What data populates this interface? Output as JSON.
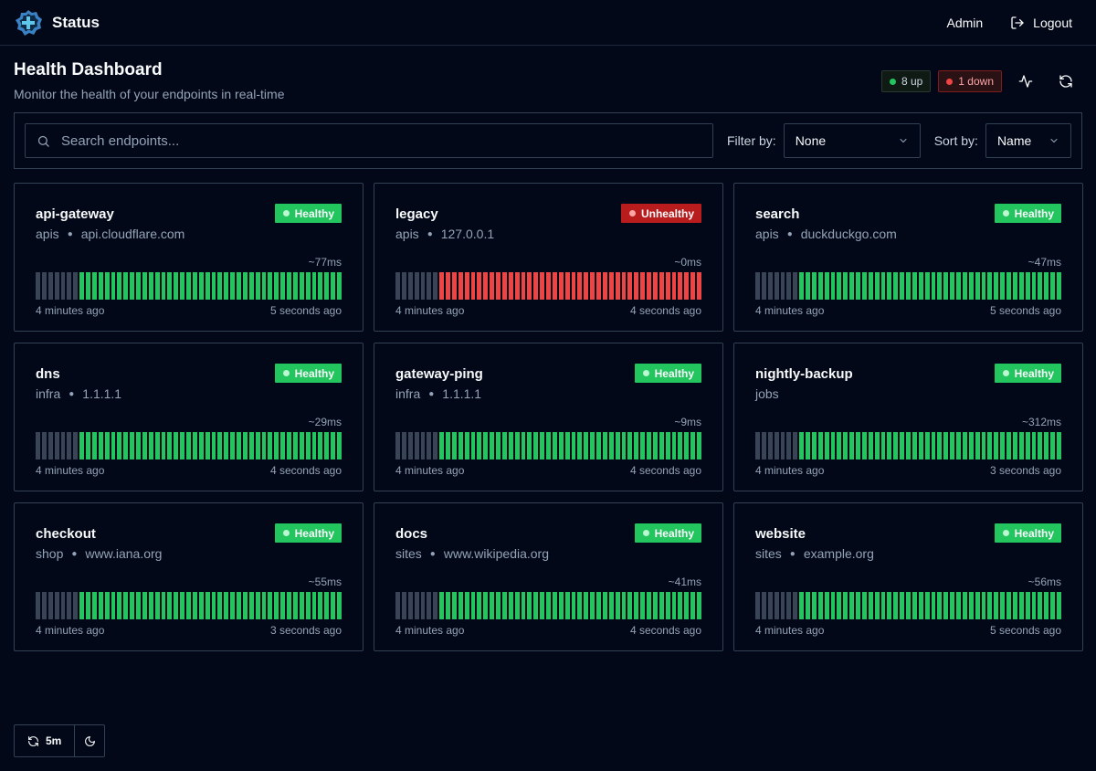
{
  "app": {
    "name": "Status"
  },
  "nav": {
    "admin_label": "Admin",
    "logout_label": "Logout"
  },
  "header": {
    "title": "Health Dashboard",
    "subtitle": "Monitor the health of your endpoints in real-time",
    "up_label": "8 up",
    "down_label": "1 down"
  },
  "toolbar": {
    "search_placeholder": "Search endpoints...",
    "filter_label": "Filter by:",
    "filter_value": "None",
    "sort_label": "Sort by:",
    "sort_value": "Name"
  },
  "colors": {
    "healthy": "#22c55e",
    "unhealthy": "#ef4444",
    "no_data": "#3a4457",
    "background": "#020817"
  },
  "endpoints": [
    {
      "name": "api-gateway",
      "group": "apis",
      "host": "api.cloudflare.com",
      "status": "Healthy",
      "latency": "~77ms",
      "oldest": "4 minutes ago",
      "newest": "5 seconds ago",
      "history_empty": 7,
      "history_results": 42,
      "history_state": "ok"
    },
    {
      "name": "legacy",
      "group": "apis",
      "host": "127.0.0.1",
      "status": "Unhealthy",
      "latency": "~0ms",
      "oldest": "4 minutes ago",
      "newest": "4 seconds ago",
      "history_empty": 7,
      "history_results": 42,
      "history_state": "bad"
    },
    {
      "name": "search",
      "group": "apis",
      "host": "duckduckgo.com",
      "status": "Healthy",
      "latency": "~47ms",
      "oldest": "4 minutes ago",
      "newest": "5 seconds ago",
      "history_empty": 7,
      "history_results": 42,
      "history_state": "ok"
    },
    {
      "name": "dns",
      "group": "infra",
      "host": "1.1.1.1",
      "status": "Healthy",
      "latency": "~29ms",
      "oldest": "4 minutes ago",
      "newest": "4 seconds ago",
      "history_empty": 7,
      "history_results": 42,
      "history_state": "ok"
    },
    {
      "name": "gateway-ping",
      "group": "infra",
      "host": "1.1.1.1",
      "status": "Healthy",
      "latency": "~9ms",
      "oldest": "4 minutes ago",
      "newest": "4 seconds ago",
      "history_empty": 7,
      "history_results": 42,
      "history_state": "ok"
    },
    {
      "name": "nightly-backup",
      "group": "jobs",
      "host": "",
      "status": "Healthy",
      "latency": "~312ms",
      "oldest": "4 minutes ago",
      "newest": "3 seconds ago",
      "history_empty": 7,
      "history_results": 42,
      "history_state": "ok"
    },
    {
      "name": "checkout",
      "group": "shop",
      "host": "www.iana.org",
      "status": "Healthy",
      "latency": "~55ms",
      "oldest": "4 minutes ago",
      "newest": "3 seconds ago",
      "history_empty": 7,
      "history_results": 42,
      "history_state": "ok"
    },
    {
      "name": "docs",
      "group": "sites",
      "host": "www.wikipedia.org",
      "status": "Healthy",
      "latency": "~41ms",
      "oldest": "4 minutes ago",
      "newest": "4 seconds ago",
      "history_empty": 7,
      "history_results": 42,
      "history_state": "ok"
    },
    {
      "name": "website",
      "group": "sites",
      "host": "example.org",
      "status": "Healthy",
      "latency": "~56ms",
      "oldest": "4 minutes ago",
      "newest": "5 seconds ago",
      "history_empty": 7,
      "history_results": 42,
      "history_state": "ok"
    }
  ],
  "footer_controls": {
    "refresh_interval": "5m"
  }
}
